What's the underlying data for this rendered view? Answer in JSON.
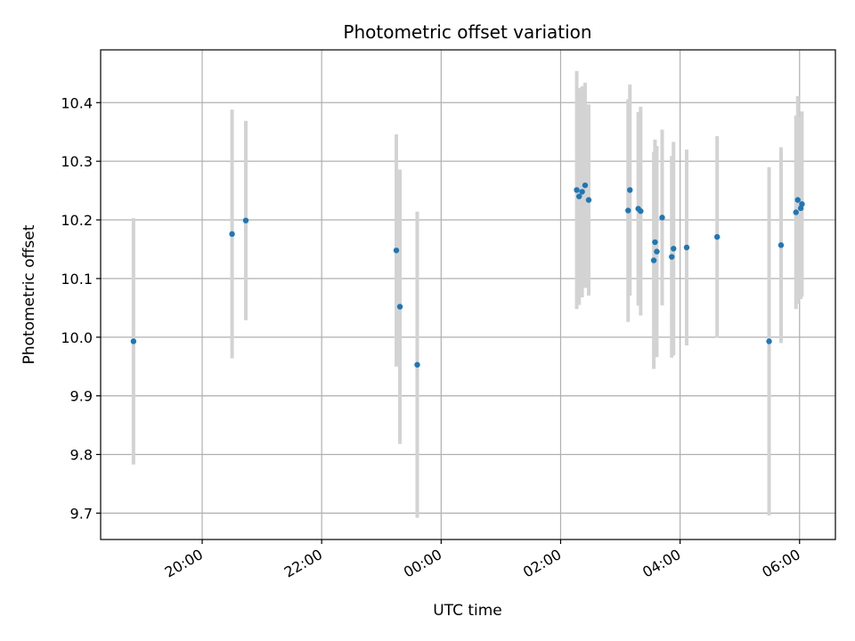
{
  "chart_data": {
    "type": "scatter",
    "title": "Photometric offset variation",
    "xlabel": "UTC time",
    "ylabel": "Photometric offset",
    "x_unit": "hours (UTC clock time, continuing past midnight)",
    "xlim": [
      18.3,
      30.6
    ],
    "ylim": [
      9.655,
      10.49
    ],
    "x_tick_values": [
      20,
      22,
      24,
      26,
      28,
      30
    ],
    "x_tick_labels": [
      "20:00",
      "22:00",
      "00:00",
      "02:00",
      "04:00",
      "06:00"
    ],
    "y_tick_values": [
      9.7,
      9.8,
      9.9,
      10.0,
      10.1,
      10.2,
      10.3,
      10.4
    ],
    "y_tick_labels": [
      "9.7",
      "9.8",
      "9.9",
      "10.0",
      "10.1",
      "10.2",
      "10.3",
      "10.4"
    ],
    "grid": true,
    "colors": {
      "point": "#1f77b4",
      "errorbar": "#d3d3d3",
      "grid": "#b0b0b0"
    },
    "points": [
      {
        "x": 18.85,
        "y": 9.993,
        "yerr": 0.21
      },
      {
        "x": 20.5,
        "y": 10.176,
        "yerr": 0.212
      },
      {
        "x": 20.73,
        "y": 10.199,
        "yerr": 0.17
      },
      {
        "x": 23.25,
        "y": 10.148,
        "yerr": 0.198
      },
      {
        "x": 23.31,
        "y": 10.052,
        "yerr": 0.234
      },
      {
        "x": 23.6,
        "y": 9.953,
        "yerr": 0.261
      },
      {
        "x": 26.27,
        "y": 10.251,
        "yerr": 0.203
      },
      {
        "x": 26.31,
        "y": 10.24,
        "yerr": 0.185
      },
      {
        "x": 26.36,
        "y": 10.248,
        "yerr": 0.18
      },
      {
        "x": 26.41,
        "y": 10.259,
        "yerr": 0.175
      },
      {
        "x": 26.47,
        "y": 10.234,
        "yerr": 0.163
      },
      {
        "x": 27.13,
        "y": 10.216,
        "yerr": 0.19
      },
      {
        "x": 27.16,
        "y": 10.251,
        "yerr": 0.18
      },
      {
        "x": 27.3,
        "y": 10.219,
        "yerr": 0.165
      },
      {
        "x": 27.34,
        "y": 10.215,
        "yerr": 0.178
      },
      {
        "x": 27.56,
        "y": 10.131,
        "yerr": 0.185
      },
      {
        "x": 27.58,
        "y": 10.162,
        "yerr": 0.175
      },
      {
        "x": 27.61,
        "y": 10.146,
        "yerr": 0.18
      },
      {
        "x": 27.7,
        "y": 10.204,
        "yerr": 0.15
      },
      {
        "x": 27.86,
        "y": 10.137,
        "yerr": 0.172
      },
      {
        "x": 27.89,
        "y": 10.151,
        "yerr": 0.182
      },
      {
        "x": 28.11,
        "y": 10.153,
        "yerr": 0.167
      },
      {
        "x": 28.62,
        "y": 10.171,
        "yerr": 0.172
      },
      {
        "x": 29.49,
        "y": 9.993,
        "yerr": 0.297
      },
      {
        "x": 29.69,
        "y": 10.157,
        "yerr": 0.167
      },
      {
        "x": 29.94,
        "y": 10.213,
        "yerr": 0.165
      },
      {
        "x": 29.97,
        "y": 10.234,
        "yerr": 0.177
      },
      {
        "x": 30.02,
        "y": 10.22,
        "yerr": 0.155
      },
      {
        "x": 30.04,
        "y": 10.227,
        "yerr": 0.158
      }
    ]
  }
}
